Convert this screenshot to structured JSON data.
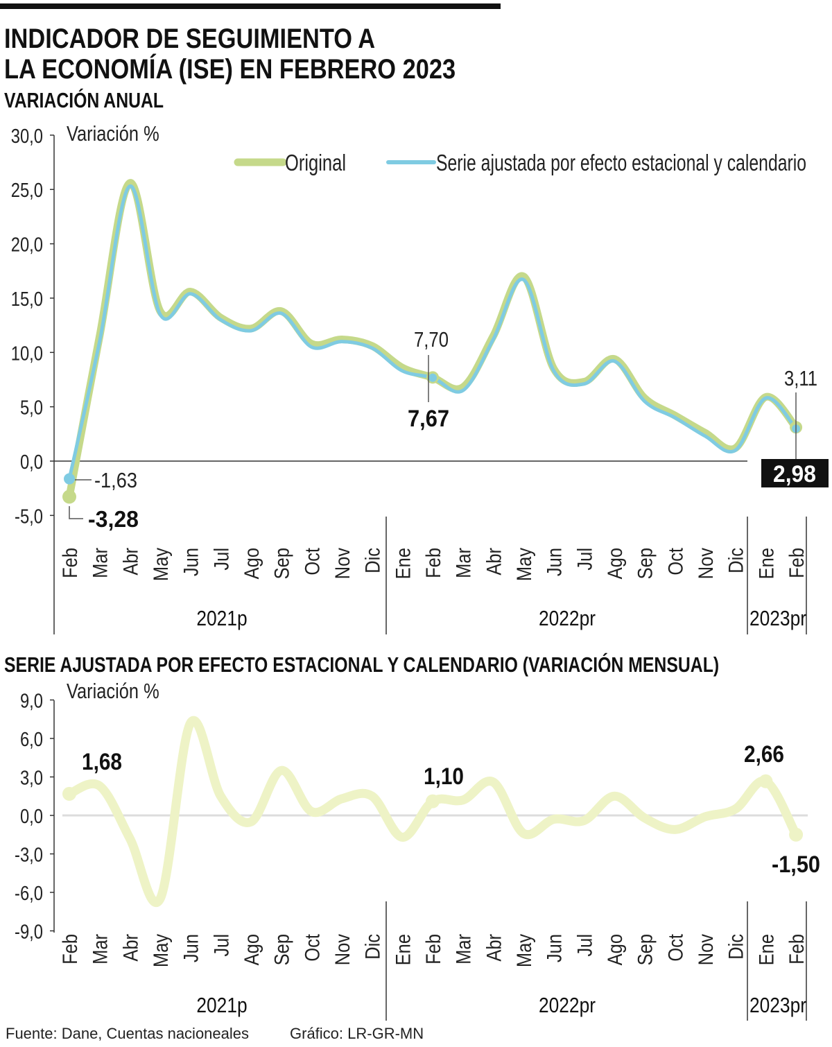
{
  "header": {
    "title_line1": "INDICADOR DE SEGUIMIENTO A",
    "title_line2": "LA ECONOMÍA (ISE) EN FEBRERO 2023",
    "subtitle": "VARIACIÓN ANUAL"
  },
  "footer": {
    "source": "Fuente: Dane, Cuentas nacioneales",
    "credit": "Gráfico: LR-GR-MN"
  },
  "colors": {
    "original": "#c5d98a",
    "adjusted": "#7fcbe2",
    "monthly": "#eef3c6",
    "text": "#111111"
  },
  "chart_data": [
    {
      "type": "line",
      "title": "VARIACIÓN ANUAL",
      "ylabel": "Variación %",
      "ylim": [
        -5,
        30
      ],
      "yticks": [
        "30,0",
        "25,0",
        "20,0",
        "15,0",
        "10,0",
        "5,0",
        "0,0",
        "-5,0"
      ],
      "ytick_values": [
        30,
        25,
        20,
        15,
        10,
        5,
        0,
        -5
      ],
      "categories": [
        "Feb",
        "Mar",
        "Abr",
        "May",
        "Jun",
        "Jul",
        "Ago",
        "Sep",
        "Oct",
        "Nov",
        "Dic",
        "Ene",
        "Feb",
        "Mar",
        "Abr",
        "May",
        "Jun",
        "Jul",
        "Ago",
        "Sep",
        "Oct",
        "Nov",
        "Dic",
        "Ene",
        "Feb"
      ],
      "years": [
        "2021p",
        "2022pr",
        "2023pr"
      ],
      "legend": {
        "position": "top-right"
      },
      "series": [
        {
          "name": "Original",
          "values": [
            -3.28,
            11.5,
            25.6,
            13.8,
            15.6,
            13.2,
            12.2,
            13.8,
            10.8,
            11.2,
            10.6,
            8.6,
            7.7,
            6.8,
            11.5,
            17.0,
            8.5,
            7.3,
            9.4,
            5.8,
            4.2,
            2.6,
            1.2,
            5.9,
            3.11
          ]
        },
        {
          "name": "Serie ajustada por efecto estacional y calendario",
          "values": [
            -1.63,
            11.0,
            25.3,
            13.5,
            15.4,
            13.0,
            12.0,
            13.6,
            10.5,
            11.0,
            10.4,
            8.3,
            7.67,
            6.5,
            11.2,
            16.7,
            8.3,
            7.1,
            9.2,
            5.5,
            4.0,
            2.3,
            1.0,
            5.8,
            2.98
          ]
        }
      ],
      "annotations": [
        "-1,63",
        "-3,28",
        "7,70",
        "7,67",
        "3,11",
        "2,98"
      ]
    },
    {
      "type": "line",
      "title": "SERIE AJUSTADA POR EFECTO ESTACIONAL Y CALENDARIO (VARIACIÓN MENSUAL)",
      "ylabel": "Variación %",
      "ylim": [
        -9,
        9
      ],
      "yticks": [
        "9,0",
        "6,0",
        "3,0",
        "0,0",
        "-3,0",
        "-6,0",
        "-9,0"
      ],
      "ytick_values": [
        9,
        6,
        3,
        0,
        -3,
        -6,
        -9
      ],
      "categories": [
        "Feb",
        "Mar",
        "Abr",
        "May",
        "Jun",
        "Jul",
        "Ago",
        "Sep",
        "Oct",
        "Nov",
        "Dic",
        "Ene",
        "Feb",
        "Mar",
        "Abr",
        "May",
        "Jun",
        "Jul",
        "Ago",
        "Sep",
        "Oct",
        "Nov",
        "Dic",
        "Ene",
        "Feb"
      ],
      "years": [
        "2021p",
        "2022pr",
        "2023pr"
      ],
      "series": [
        {
          "values": [
            1.68,
            2.3,
            -1.8,
            -6.5,
            7.2,
            1.5,
            -0.5,
            3.5,
            0.3,
            1.3,
            1.5,
            -1.7,
            1.1,
            1.2,
            2.6,
            -1.4,
            -0.3,
            -0.4,
            1.5,
            -0.2,
            -1.1,
            -0.1,
            0.5,
            2.66,
            -1.5
          ]
        }
      ],
      "annotations": [
        "1,68",
        "1,10",
        "2,66",
        "-1,50"
      ]
    }
  ]
}
